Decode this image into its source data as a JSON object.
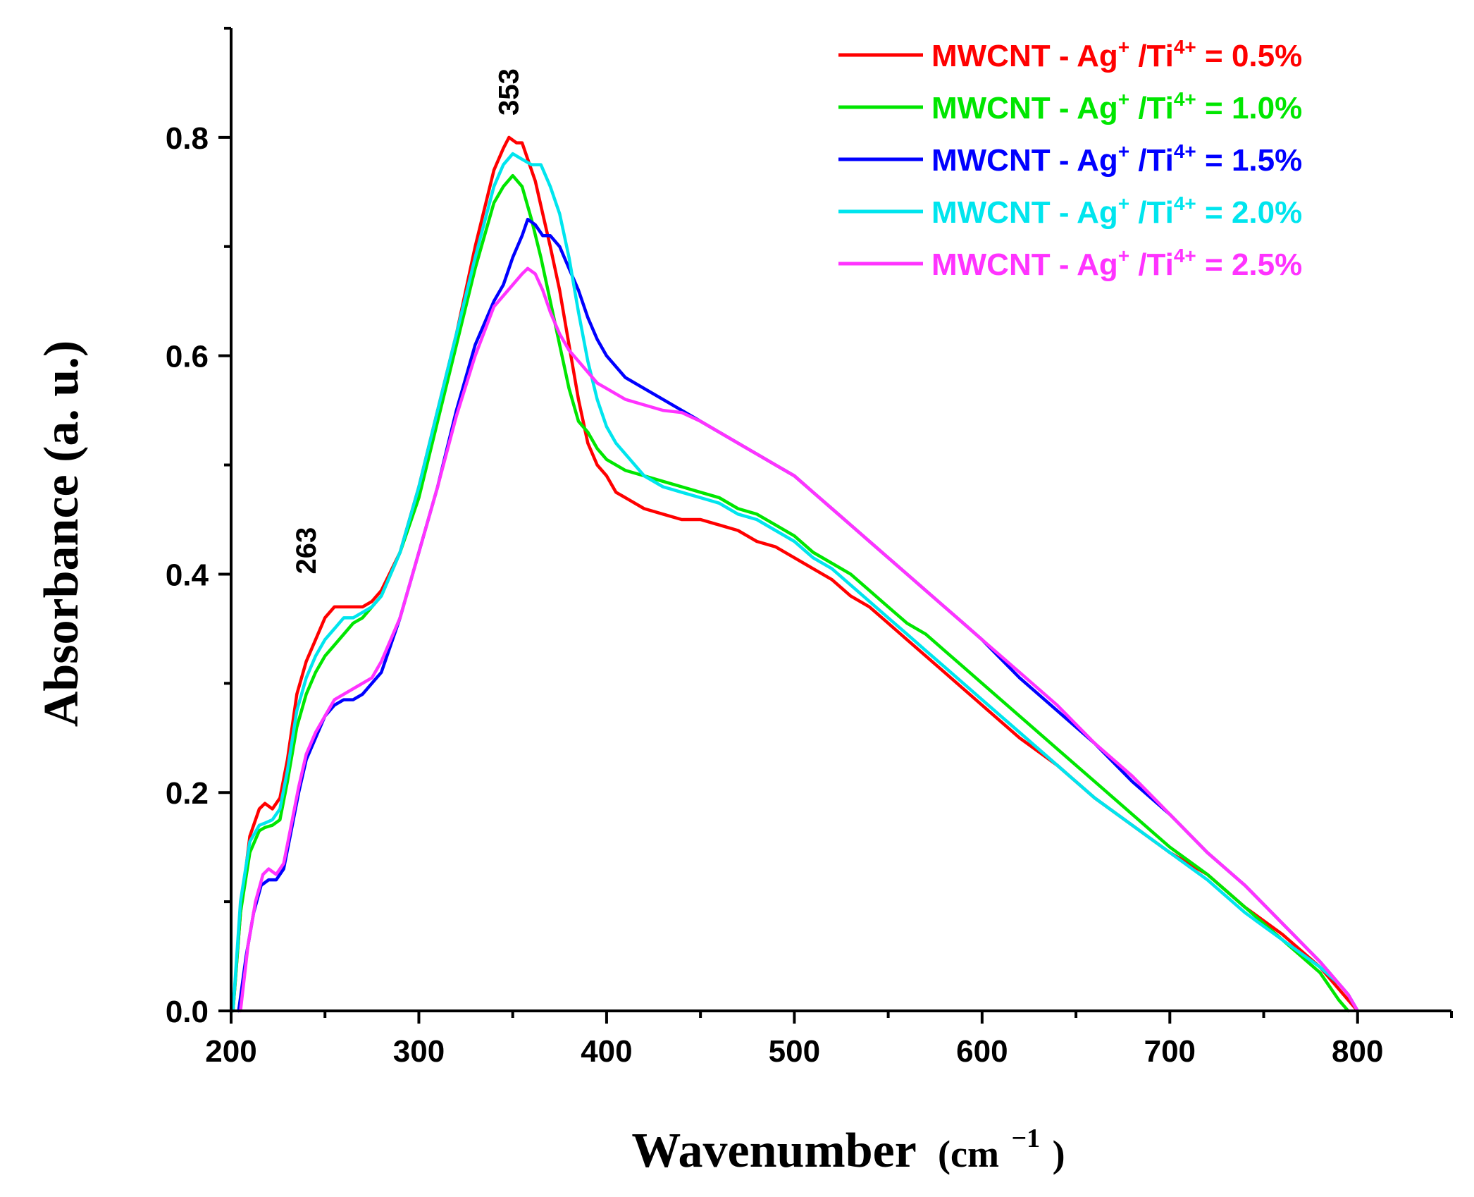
{
  "chart_data": {
    "type": "line",
    "xlabel": "Wavenumber (cm−1)",
    "xlabel_main": "Wavenumber",
    "xlabel_unit": "(cm",
    "xlabel_exp": "−1",
    "xlabel_close": ")",
    "ylabel": "Absorbance (a. u.)",
    "xlim": [
      200,
      850
    ],
    "ylim": [
      0,
      0.9
    ],
    "xticks": [
      200,
      300,
      400,
      500,
      600,
      700,
      800
    ],
    "xtick_labels": [
      "200",
      "300",
      "400",
      "500",
      "600",
      "700",
      "800"
    ],
    "yticks": [
      0.0,
      0.2,
      0.4,
      0.6,
      0.8
    ],
    "ytick_labels": [
      "0.0",
      "0.2",
      "0.4",
      "0.6",
      "0.8"
    ],
    "annotations": [
      {
        "text": "263",
        "x": 245,
        "y": 0.4
      },
      {
        "text": "353",
        "x": 353,
        "y": 0.82
      }
    ],
    "legend_position": "top-right",
    "series": [
      {
        "name": "MWCNT - Ag+ /Ti4+ = 0.5%",
        "label_prefix": "MWCNT - Ag",
        "label_sup1": "+",
        "label_mid": " /Ti",
        "label_sup2": "4+",
        "label_suffix": " = 0.5%",
        "color": "#ff0000",
        "x": [
          201,
          205,
          210,
          215,
          218,
          222,
          226,
          230,
          235,
          240,
          245,
          250,
          255,
          260,
          265,
          270,
          275,
          280,
          290,
          300,
          310,
          320,
          330,
          340,
          345,
          348,
          352,
          355,
          358,
          362,
          366,
          370,
          375,
          380,
          385,
          390,
          395,
          400,
          405,
          410,
          420,
          430,
          440,
          450,
          460,
          470,
          480,
          490,
          500,
          510,
          520,
          530,
          540,
          550,
          560,
          570,
          580,
          590,
          600,
          620,
          640,
          660,
          680,
          700,
          720,
          740,
          760,
          780,
          790,
          795,
          800
        ],
        "y": [
          0.0,
          0.09,
          0.16,
          0.185,
          0.19,
          0.185,
          0.195,
          0.23,
          0.29,
          0.32,
          0.34,
          0.36,
          0.37,
          0.37,
          0.37,
          0.37,
          0.375,
          0.385,
          0.42,
          0.48,
          0.55,
          0.62,
          0.7,
          0.77,
          0.79,
          0.8,
          0.795,
          0.795,
          0.78,
          0.76,
          0.73,
          0.7,
          0.66,
          0.61,
          0.56,
          0.52,
          0.5,
          0.49,
          0.475,
          0.47,
          0.46,
          0.455,
          0.45,
          0.45,
          0.445,
          0.44,
          0.43,
          0.425,
          0.415,
          0.405,
          0.395,
          0.38,
          0.37,
          0.355,
          0.34,
          0.325,
          0.31,
          0.295,
          0.28,
          0.25,
          0.225,
          0.195,
          0.17,
          0.145,
          0.125,
          0.095,
          0.07,
          0.04,
          0.02,
          0.01,
          0.0
        ]
      },
      {
        "name": "MWCNT - Ag+ /Ti4+ = 1.0%",
        "label_prefix": "MWCNT - Ag",
        "label_sup1": "+",
        "label_mid": " /Ti",
        "label_sup2": "4+",
        "label_suffix": " = 1.0%",
        "color": "#00e600",
        "x": [
          201,
          205,
          210,
          215,
          218,
          222,
          226,
          230,
          235,
          240,
          245,
          250,
          255,
          260,
          265,
          270,
          275,
          280,
          290,
          300,
          310,
          320,
          330,
          340,
          345,
          350,
          355,
          360,
          365,
          370,
          375,
          380,
          385,
          390,
          395,
          400,
          410,
          420,
          430,
          440,
          450,
          460,
          470,
          480,
          490,
          500,
          510,
          520,
          530,
          540,
          550,
          560,
          570,
          580,
          590,
          600,
          620,
          640,
          660,
          680,
          700,
          720,
          740,
          760,
          780,
          790,
          795
        ],
        "y": [
          0.0,
          0.09,
          0.145,
          0.165,
          0.168,
          0.17,
          0.175,
          0.21,
          0.26,
          0.29,
          0.31,
          0.325,
          0.335,
          0.345,
          0.355,
          0.36,
          0.37,
          0.38,
          0.42,
          0.47,
          0.54,
          0.61,
          0.68,
          0.74,
          0.755,
          0.765,
          0.755,
          0.725,
          0.69,
          0.65,
          0.61,
          0.57,
          0.54,
          0.53,
          0.515,
          0.505,
          0.495,
          0.49,
          0.485,
          0.48,
          0.475,
          0.47,
          0.46,
          0.455,
          0.445,
          0.435,
          0.42,
          0.41,
          0.4,
          0.385,
          0.37,
          0.355,
          0.345,
          0.33,
          0.315,
          0.3,
          0.27,
          0.24,
          0.21,
          0.18,
          0.15,
          0.125,
          0.095,
          0.065,
          0.035,
          0.01,
          0.0
        ]
      },
      {
        "name": "MWCNT - Ag+ /Ti4+ = 1.5%",
        "label_prefix": "MWCNT - Ag",
        "label_sup1": "+",
        "label_mid": " /Ti",
        "label_sup2": "4+",
        "label_suffix": " = 1.5%",
        "color": "#0000ff",
        "x": [
          204,
          208,
          212,
          216,
          220,
          224,
          228,
          232,
          236,
          240,
          245,
          250,
          255,
          260,
          265,
          270,
          275,
          280,
          290,
          300,
          310,
          320,
          330,
          340,
          345,
          350,
          355,
          358,
          362,
          366,
          370,
          375,
          380,
          385,
          390,
          395,
          400,
          410,
          420,
          430,
          440,
          450,
          460,
          470,
          480,
          490,
          500,
          510,
          520,
          530,
          540,
          550,
          560,
          570,
          580,
          590,
          600,
          620,
          640,
          660,
          680,
          700,
          720,
          740,
          760,
          780,
          790,
          795,
          800
        ],
        "y": [
          0.0,
          0.05,
          0.09,
          0.115,
          0.12,
          0.12,
          0.13,
          0.165,
          0.2,
          0.23,
          0.25,
          0.27,
          0.28,
          0.285,
          0.285,
          0.29,
          0.3,
          0.31,
          0.36,
          0.42,
          0.48,
          0.55,
          0.61,
          0.65,
          0.665,
          0.69,
          0.71,
          0.725,
          0.72,
          0.71,
          0.71,
          0.7,
          0.68,
          0.66,
          0.635,
          0.615,
          0.6,
          0.58,
          0.57,
          0.56,
          0.55,
          0.54,
          0.53,
          0.52,
          0.51,
          0.5,
          0.49,
          0.475,
          0.46,
          0.445,
          0.43,
          0.415,
          0.4,
          0.385,
          0.37,
          0.355,
          0.34,
          0.305,
          0.275,
          0.245,
          0.21,
          0.18,
          0.145,
          0.115,
          0.08,
          0.045,
          0.025,
          0.015,
          0.0
        ]
      },
      {
        "name": "MWCNT - Ag+ /Ti4+ = 2.0%",
        "label_prefix": "MWCNT - Ag",
        "label_sup1": "+",
        "label_mid": " /Ti",
        "label_sup2": "4+",
        "label_suffix": " = 2.0%",
        "color": "#00e5ee",
        "x": [
          201,
          205,
          210,
          215,
          218,
          222,
          226,
          230,
          235,
          240,
          245,
          250,
          255,
          260,
          265,
          270,
          275,
          280,
          290,
          300,
          310,
          320,
          330,
          340,
          345,
          350,
          355,
          360,
          365,
          370,
          375,
          380,
          385,
          390,
          395,
          400,
          405,
          410,
          420,
          430,
          440,
          450,
          460,
          470,
          480,
          490,
          500,
          510,
          520,
          530,
          540,
          550,
          560,
          570,
          580,
          590,
          600,
          620,
          640,
          660,
          680,
          700,
          720,
          740,
          760,
          780,
          790,
          795,
          800
        ],
        "y": [
          0.0,
          0.1,
          0.155,
          0.17,
          0.172,
          0.175,
          0.185,
          0.22,
          0.275,
          0.305,
          0.325,
          0.34,
          0.35,
          0.36,
          0.36,
          0.365,
          0.37,
          0.38,
          0.42,
          0.48,
          0.55,
          0.62,
          0.69,
          0.755,
          0.775,
          0.785,
          0.78,
          0.775,
          0.775,
          0.755,
          0.73,
          0.69,
          0.64,
          0.595,
          0.56,
          0.535,
          0.52,
          0.51,
          0.49,
          0.48,
          0.475,
          0.47,
          0.465,
          0.455,
          0.45,
          0.44,
          0.43,
          0.415,
          0.405,
          0.39,
          0.375,
          0.36,
          0.345,
          0.33,
          0.315,
          0.3,
          0.285,
          0.255,
          0.225,
          0.195,
          0.17,
          0.145,
          0.12,
          0.09,
          0.065,
          0.04,
          0.025,
          0.015,
          0.0
        ]
      },
      {
        "name": "MWCNT - Ag+ /Ti4+ = 2.5%",
        "label_prefix": "MWCNT - Ag",
        "label_sup1": "+",
        "label_mid": " /Ti",
        "label_sup2": "4+",
        "label_suffix": " = 2.5%",
        "color": "#ff33ff",
        "x": [
          205,
          209,
          213,
          217,
          220,
          224,
          228,
          232,
          236,
          240,
          245,
          250,
          255,
          260,
          265,
          270,
          275,
          280,
          290,
          300,
          310,
          320,
          330,
          340,
          345,
          350,
          355,
          358,
          362,
          366,
          370,
          375,
          380,
          385,
          390,
          395,
          400,
          410,
          420,
          430,
          440,
          450,
          460,
          470,
          480,
          490,
          500,
          510,
          520,
          530,
          540,
          550,
          560,
          570,
          580,
          590,
          600,
          620,
          640,
          660,
          680,
          700,
          720,
          740,
          760,
          780,
          790,
          795,
          800
        ],
        "y": [
          0.0,
          0.06,
          0.1,
          0.125,
          0.13,
          0.125,
          0.135,
          0.17,
          0.205,
          0.235,
          0.255,
          0.27,
          0.285,
          0.29,
          0.295,
          0.3,
          0.305,
          0.32,
          0.36,
          0.42,
          0.48,
          0.545,
          0.6,
          0.645,
          0.655,
          0.665,
          0.675,
          0.68,
          0.675,
          0.66,
          0.64,
          0.62,
          0.605,
          0.595,
          0.585,
          0.575,
          0.57,
          0.56,
          0.555,
          0.55,
          0.548,
          0.54,
          0.53,
          0.52,
          0.51,
          0.5,
          0.49,
          0.475,
          0.46,
          0.445,
          0.43,
          0.415,
          0.4,
          0.385,
          0.37,
          0.355,
          0.34,
          0.31,
          0.28,
          0.245,
          0.215,
          0.18,
          0.145,
          0.115,
          0.08,
          0.045,
          0.025,
          0.015,
          0.0
        ]
      }
    ]
  }
}
